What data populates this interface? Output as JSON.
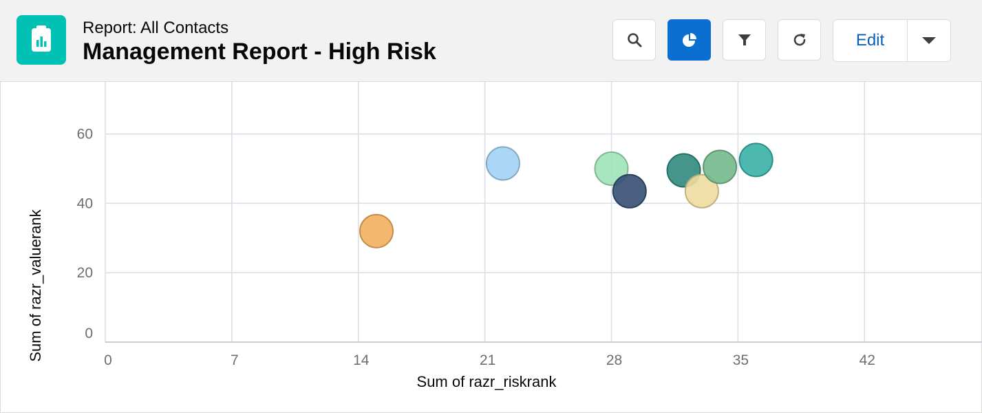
{
  "header": {
    "subtitle": "Report: All Contacts",
    "title": "Management Report - High Risk",
    "app_icon": "report-clipboard-icon",
    "accent_color": "#00c1b4",
    "toolbar": {
      "search_icon": "search-icon",
      "chart_icon": "chart-icon",
      "filter_icon": "filter-icon",
      "refresh_icon": "refresh-icon",
      "edit_label": "Edit",
      "menu_icon": "chevron-down-icon",
      "active_color": "#0a6fd1"
    }
  },
  "chart_data": {
    "type": "scatter",
    "xlabel": "Sum of razr_riskrank",
    "ylabel": "Sum of razr_valuerank",
    "xticks": [
      0,
      7,
      14,
      21,
      28,
      35,
      42
    ],
    "yticks": [
      0,
      20,
      40,
      60
    ],
    "xlim": [
      0,
      48.5
    ],
    "ylim": [
      0,
      75
    ],
    "grid": true,
    "points": [
      {
        "x": 15,
        "y": 32,
        "color": "#f2b05e"
      },
      {
        "x": 22,
        "y": 51.5,
        "color": "#a3d2f5"
      },
      {
        "x": 28,
        "y": 50,
        "color": "#9de3b7"
      },
      {
        "x": 29,
        "y": 43.5,
        "color": "#354f73"
      },
      {
        "x": 32,
        "y": 49.5,
        "color": "#2f8b7c"
      },
      {
        "x": 33,
        "y": 43.5,
        "color": "#f0dba0"
      },
      {
        "x": 34,
        "y": 50.5,
        "color": "#74b98d"
      },
      {
        "x": 36,
        "y": 52.5,
        "color": "#38b0a6"
      }
    ]
  }
}
